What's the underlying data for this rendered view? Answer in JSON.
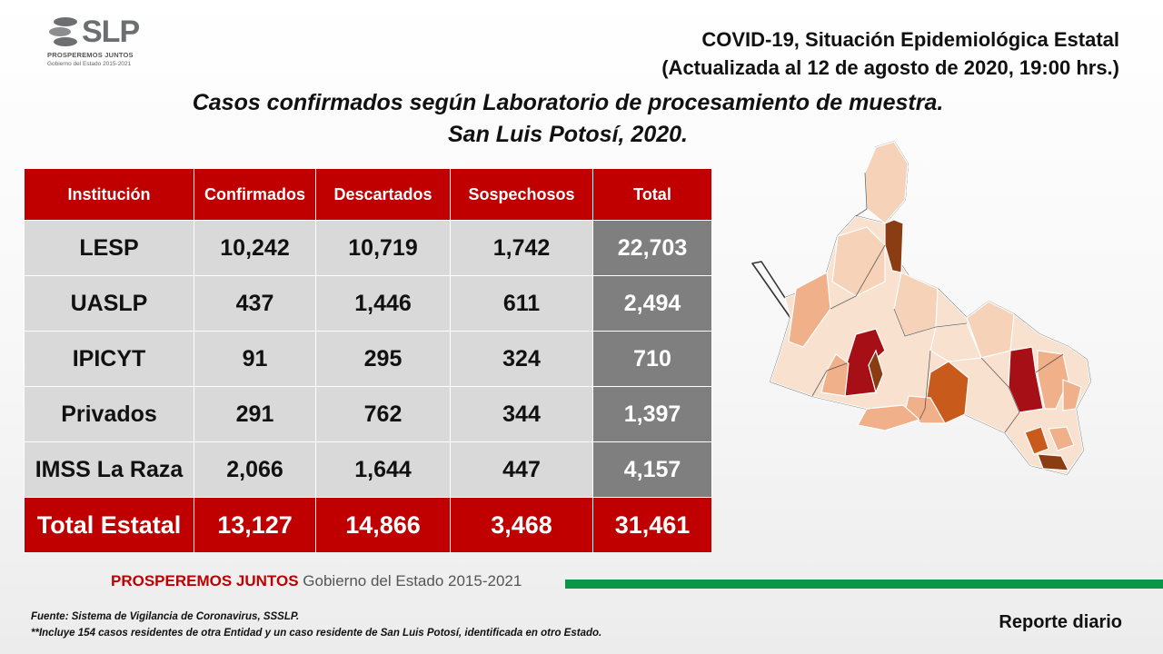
{
  "logo": {
    "text": "SLP",
    "tagline": "PROSPEREMOS JUNTOS",
    "government": "Gobierno del Estado 2015-2021"
  },
  "header": {
    "title_line1": "COVID-19, Situación Epidemiológica Estatal",
    "title_line2": "(Actualizada al 12 de agosto de 2020, 19:00 hrs.)"
  },
  "subtitle": {
    "line1": "Casos confirmados según Laboratorio de procesamiento de muestra.",
    "line2": "San Luis Potosí, 2020."
  },
  "table": {
    "headers": [
      "Institución",
      "Confirmados",
      "Descartados",
      "Sospechosos",
      "Total"
    ],
    "rows": [
      [
        "LESP",
        "10,242",
        "10,719",
        "1,742",
        "22,703"
      ],
      [
        "UASLP",
        "437",
        "1,446",
        "611",
        "2,494"
      ],
      [
        "IPICYT",
        "91",
        "295",
        "324",
        "710"
      ],
      [
        "Privados",
        "291",
        "762",
        "344",
        "1,397"
      ],
      [
        "IMSS La Raza",
        "2,066",
        "1,644",
        "447",
        "4,157"
      ]
    ],
    "total_row": [
      "Total Estatal",
      "13,127",
      "14,866",
      "3,468",
      "31,461"
    ]
  },
  "map": {
    "colors": {
      "stroke": "#ffffff",
      "base": "#f9e1cf",
      "light": "#f6d2b8",
      "medium": "#f0b08a",
      "strong": "#c85a1c",
      "dark": "#8a3d12",
      "red": "#a50f15"
    }
  },
  "footer": {
    "brand_bold": "PROSPEREMOS JUNTOS",
    "brand_rest": " Gobierno del Estado 2015-2021",
    "accent_color": "#0a9646"
  },
  "notes": {
    "source": "Fuente: Sistema de Vigilancia de Coronavirus, SSSLP.",
    "note": "**Incluye 154 casos residentes de otra Entidad y un caso residente de San Luis Potosí, identificada en otro Estado."
  },
  "report_label": "Reporte diario"
}
